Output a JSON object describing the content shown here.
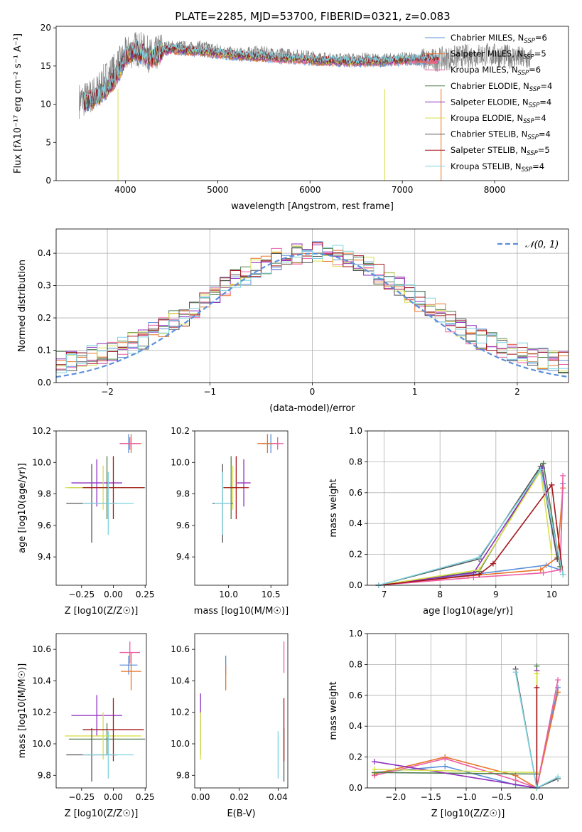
{
  "title": "PLATE=2285, MJD=53700, FIBERID=0321, z=0.083",
  "colors": {
    "Chabrier MILES": "#5b8fd9",
    "Salpeter MILES": "#e87528",
    "Kroupa MILES": "#ec5fa6",
    "Chabrier ELODIE": "#4f7d4f",
    "Salpeter ELODIE": "#8e2dbd",
    "Kroupa ELODIE": "#d8e04a",
    "Chabrier STELIB": "#555555",
    "Salpeter STELIB": "#a3151b",
    "Kroupa STELIB": "#7fd3e0",
    "gaussian": "#5b8fd9"
  },
  "chart_data": [
    {
      "id": "spectrum",
      "type": "line",
      "xlabel": "wavelength [Angstrom, rest frame]",
      "ylabel": "Flux [fλ10⁻¹⁷ erg cm⁻² s⁻¹ A⁻¹]",
      "xlim": [
        3250,
        8800
      ],
      "ylim": [
        0,
        20.2
      ],
      "xticks": [
        4000,
        5000,
        6000,
        7000,
        8000
      ],
      "yticks": [
        0,
        5,
        10,
        15,
        20
      ],
      "legend_position": "top-right",
      "legend": [
        {
          "label": "Chabrier MILES, N",
          "sub": "SSP",
          "eq": "=6",
          "color_key": "Chabrier MILES"
        },
        {
          "label": "Salpeter MILES, N",
          "sub": "SSP",
          "eq": "=5",
          "color_key": "Salpeter MILES"
        },
        {
          "label": "Kroupa MILES, N",
          "sub": "SSP",
          "eq": "=6",
          "color_key": "Kroupa MILES"
        },
        {
          "label": "Chabrier ELODIE, N",
          "sub": "SSP",
          "eq": "=4",
          "color_key": "Chabrier ELODIE"
        },
        {
          "label": "Salpeter ELODIE, N",
          "sub": "SSP",
          "eq": "=4",
          "color_key": "Salpeter ELODIE"
        },
        {
          "label": "Kroupa ELODIE, N",
          "sub": "SSP",
          "eq": "=4",
          "color_key": "Kroupa ELODIE"
        },
        {
          "label": "Chabrier STELIB, N",
          "sub": "SSP",
          "eq": "=4",
          "color_key": "Chabrier STELIB"
        },
        {
          "label": "Salpeter STELIB, N",
          "sub": "SSP",
          "eq": "=5",
          "color_key": "Salpeter STELIB"
        },
        {
          "label": "Kroupa STELIB, N",
          "sub": "SSP",
          "eq": "=4",
          "color_key": "Kroupa STELIB"
        }
      ],
      "data_flux": {
        "x": [
          3500,
          3600,
          3700,
          3800,
          3900,
          4000,
          4100,
          4200,
          4300,
          4400,
          4500,
          4600,
          4700,
          4800,
          4900,
          5000,
          5100,
          5200,
          5300,
          5400,
          5500,
          5600,
          5700,
          5800,
          5900,
          6000,
          6100,
          6200,
          6300,
          6400,
          6500,
          6600,
          6700,
          6800,
          6900,
          7000,
          7100,
          7200,
          7300,
          7400,
          7500,
          7600,
          7700,
          7800,
          7900,
          8000,
          8100,
          8200,
          8300,
          8400
        ],
        "y": [
          10.5,
          10.8,
          11.8,
          13.5,
          14.6,
          16.4,
          17.3,
          17.0,
          16.1,
          17.4,
          17.5,
          17.5,
          17.3,
          17.5,
          17.3,
          17.1,
          16.8,
          16.5,
          16.6,
          16.8,
          16.7,
          16.6,
          16.5,
          16.4,
          16.3,
          16.2,
          16.0,
          15.9,
          15.8,
          15.9,
          15.8,
          15.9,
          15.8,
          15.7,
          15.9,
          16.0,
          15.9,
          15.9,
          15.7,
          15.9,
          16.0,
          16.2,
          16.3,
          16.4,
          16.5,
          16.4,
          16.3,
          16.2,
          16.0,
          15.8
        ]
      },
      "model_flux": {
        "x": [
          3550,
          3700,
          3850,
          3950,
          4000,
          4100,
          4200,
          4300,
          4400,
          4500,
          4700,
          4900,
          5100,
          5300,
          5500,
          5700,
          5900,
          6100,
          6300,
          6500,
          6700,
          6900,
          7100,
          7300
        ],
        "y": [
          10.2,
          10.9,
          12.8,
          14.7,
          16.3,
          17.0,
          16.6,
          16.0,
          16.9,
          17.2,
          17.0,
          16.8,
          16.5,
          16.3,
          16.2,
          16.0,
          15.9,
          15.7,
          15.6,
          15.5,
          15.6,
          15.7,
          15.8,
          15.9
        ]
      }
    },
    {
      "id": "residuals",
      "type": "histogram",
      "xlabel": "(data-model)/error",
      "ylabel": "Normed distribution",
      "xlim": [
        -2.5,
        2.5
      ],
      "ylim": [
        0,
        0.475
      ],
      "xticks": [
        -2,
        -1,
        0,
        1,
        2
      ],
      "yticks": [
        0.0,
        0.1,
        0.2,
        0.3,
        0.4
      ],
      "grid": true,
      "legend_position": "top-right",
      "gaussian_label": "𝒩(0, 1)",
      "bin_edges_start": -2.5,
      "bin_width": 0.1
    },
    {
      "id": "age_vs_Z",
      "type": "scatter",
      "xlabel": "Z [log10(Z/Z☉)]",
      "ylabel": "age  [log10(age/yr)]",
      "xlim": [
        -0.45,
        0.26
      ],
      "ylim": [
        9.22,
        10.2
      ],
      "xticks": [
        -0.25,
        0.0,
        0.25
      ],
      "yticks": [
        9.4,
        9.6,
        9.8,
        10.0,
        10.2
      ],
      "points": [
        {
          "key": "Chabrier MILES",
          "x": 0.12,
          "xerr": 0.07,
          "y": 10.12,
          "yerr": 0.06
        },
        {
          "key": "Salpeter MILES",
          "x": 0.14,
          "xerr": 0.08,
          "y": 10.12,
          "yerr": 0.06
        },
        {
          "key": "Kroupa MILES",
          "x": 0.13,
          "xerr": 0.08,
          "y": 10.12,
          "yerr": 0.04
        },
        {
          "key": "Chabrier ELODIE",
          "x": -0.05,
          "xerr": 0.3,
          "y": 9.84,
          "yerr": 0.2
        },
        {
          "key": "Salpeter ELODIE",
          "x": -0.13,
          "xerr": 0.2,
          "y": 9.87,
          "yerr": 0.15
        },
        {
          "key": "Kroupa ELODIE",
          "x": -0.08,
          "xerr": 0.3,
          "y": 9.84,
          "yerr": 0.14
        },
        {
          "key": "Chabrier STELIB",
          "x": -0.17,
          "xerr": 0.2,
          "y": 9.74,
          "yerr": 0.25
        },
        {
          "key": "Salpeter STELIB",
          "x": 0.0,
          "xerr": 0.24,
          "y": 9.84,
          "yerr": 0.2
        },
        {
          "key": "Kroupa STELIB",
          "x": -0.04,
          "xerr": 0.2,
          "y": 9.74,
          "yerr": 0.2
        }
      ]
    },
    {
      "id": "age_vs_mass",
      "type": "scatter",
      "xlabel": "mass [log10(M/M☉)]",
      "ylabel": "",
      "xlim": [
        9.6,
        10.7
      ],
      "ylim": [
        9.22,
        10.2
      ],
      "xticks": [
        10.0,
        10.5
      ],
      "yticks": [
        9.4,
        9.6,
        9.8,
        10.0,
        10.2
      ],
      "points": [
        {
          "key": "Chabrier MILES",
          "x": 10.5,
          "xerr": 0.1,
          "y": 10.12,
          "yerr": 0.06
        },
        {
          "key": "Salpeter MILES",
          "x": 10.46,
          "xerr": 0.12,
          "y": 10.12,
          "yerr": 0.06
        },
        {
          "key": "Kroupa MILES",
          "x": 10.58,
          "xerr": 0.07,
          "y": 10.12,
          "yerr": 0.04
        },
        {
          "key": "Chabrier ELODIE",
          "x": 10.03,
          "xerr": 0.1,
          "y": 9.84,
          "yerr": 0.2
        },
        {
          "key": "Salpeter ELODIE",
          "x": 10.18,
          "xerr": 0.08,
          "y": 9.87,
          "yerr": 0.15
        },
        {
          "key": "Kroupa ELODIE",
          "x": 10.05,
          "xerr": 0.12,
          "y": 9.84,
          "yerr": 0.14
        },
        {
          "key": "Chabrier STELIB",
          "x": 9.93,
          "xerr": 0.12,
          "y": 9.74,
          "yerr": 0.25
        },
        {
          "key": "Salpeter STELIB",
          "x": 10.09,
          "xerr": 0.15,
          "y": 9.84,
          "yerr": 0.2
        },
        {
          "key": "Kroupa STELIB",
          "x": 9.93,
          "xerr": 0.1,
          "y": 9.74,
          "yerr": 0.2
        }
      ]
    },
    {
      "id": "massweight_vs_age",
      "type": "line",
      "xlabel": "age  [log10(age/yr)]",
      "ylabel": "mass weight",
      "xlim": [
        6.7,
        10.3
      ],
      "ylim": [
        0,
        1.0
      ],
      "xticks": [
        7,
        8,
        9,
        10
      ],
      "yticks": [
        0.0,
        0.2,
        0.4,
        0.6,
        0.8,
        1.0
      ],
      "grid": true,
      "series": [
        {
          "key": "Chabrier MILES",
          "x": [
            6.9,
            8.6,
            9.9,
            10.15,
            10.2
          ],
          "y": [
            0.0,
            0.07,
            0.13,
            0.1,
            0.66
          ]
        },
        {
          "key": "Salpeter MILES",
          "x": [
            6.9,
            8.5,
            9.8,
            10.1,
            10.2
          ],
          "y": [
            0.0,
            0.06,
            0.1,
            0.18,
            0.63
          ]
        },
        {
          "key": "Kroupa MILES",
          "x": [
            6.9,
            8.6,
            9.85,
            10.15,
            10.2
          ],
          "y": [
            0.0,
            0.05,
            0.08,
            0.1,
            0.71
          ]
        },
        {
          "key": "Chabrier ELODIE",
          "x": [
            6.9,
            8.7,
            9.85,
            10.15
          ],
          "y": [
            0.0,
            0.09,
            0.79,
            0.12
          ]
        },
        {
          "key": "Salpeter ELODIE",
          "x": [
            6.9,
            8.6,
            9.83,
            10.1
          ],
          "y": [
            0.0,
            0.08,
            0.76,
            0.17
          ]
        },
        {
          "key": "Kroupa ELODIE",
          "x": [
            6.9,
            8.7,
            9.8,
            10.0
          ],
          "y": [
            0.0,
            0.1,
            0.74,
            0.2
          ]
        },
        {
          "key": "Chabrier STELIB",
          "x": [
            6.9,
            8.7,
            9.8,
            10.1
          ],
          "y": [
            0.0,
            0.17,
            0.77,
            0.17
          ]
        },
        {
          "key": "Salpeter STELIB",
          "x": [
            6.9,
            8.7,
            8.95,
            10.0,
            10.2
          ],
          "y": [
            0.0,
            0.07,
            0.14,
            0.65,
            0.07
          ]
        },
        {
          "key": "Kroupa STELIB",
          "x": [
            6.9,
            8.7,
            9.8,
            10.2
          ],
          "y": [
            0.0,
            0.18,
            0.75,
            0.07
          ]
        }
      ]
    },
    {
      "id": "mass_vs_Z",
      "type": "scatter",
      "xlabel": "Z [log10(Z/Z☉)]",
      "ylabel": "mass [log10(M/M☉)]",
      "xlim": [
        -0.45,
        0.26
      ],
      "ylim": [
        9.72,
        10.7
      ],
      "xticks": [
        -0.25,
        0.0,
        0.25
      ],
      "yticks": [
        9.8,
        10.0,
        10.2,
        10.4,
        10.6
      ],
      "points": [
        {
          "key": "Chabrier MILES",
          "x": 0.12,
          "xerr": 0.07,
          "y": 10.5,
          "yerr": 0.06
        },
        {
          "key": "Salpeter MILES",
          "x": 0.14,
          "xerr": 0.08,
          "y": 10.46,
          "yerr": 0.12
        },
        {
          "key": "Kroupa MILES",
          "x": 0.13,
          "xerr": 0.08,
          "y": 10.58,
          "yerr": 0.07
        },
        {
          "key": "Chabrier ELODIE",
          "x": -0.05,
          "xerr": 0.3,
          "y": 10.03,
          "yerr": 0.1
        },
        {
          "key": "Salpeter ELODIE",
          "x": -0.13,
          "xerr": 0.2,
          "y": 10.18,
          "yerr": 0.13
        },
        {
          "key": "Kroupa ELODIE",
          "x": -0.08,
          "xerr": 0.3,
          "y": 10.05,
          "yerr": 0.15
        },
        {
          "key": "Chabrier STELIB",
          "x": -0.17,
          "xerr": 0.2,
          "y": 9.93,
          "yerr": 0.17
        },
        {
          "key": "Salpeter STELIB",
          "x": 0.0,
          "xerr": 0.24,
          "y": 10.09,
          "yerr": 0.2
        },
        {
          "key": "Kroupa STELIB",
          "x": -0.04,
          "xerr": 0.2,
          "y": 9.93,
          "yerr": 0.15
        }
      ]
    },
    {
      "id": "mass_vs_EBV",
      "type": "scatter",
      "xlabel": "E(B-V)",
      "ylabel": "",
      "xlim": [
        -0.003,
        0.045
      ],
      "ylim": [
        9.72,
        10.7
      ],
      "xticks": [
        0.0,
        0.02,
        0.04
      ],
      "yticks": [
        9.8,
        10.0,
        10.2,
        10.4,
        10.6
      ],
      "points": [
        {
          "key": "Chabrier MILES",
          "x": 0.013,
          "xerr": 0,
          "y": 10.5,
          "yerr": 0.06
        },
        {
          "key": "Salpeter MILES",
          "x": 0.013,
          "xerr": 0,
          "y": 10.42,
          "yerr": 0.08
        },
        {
          "key": "Kroupa MILES",
          "x": 0.043,
          "xerr": 0,
          "y": 10.55,
          "yerr": 0.1
        },
        {
          "key": "Chabrier ELODIE",
          "x": 0.0,
          "xerr": 0,
          "y": 10.03,
          "yerr": 0.1
        },
        {
          "key": "Salpeter ELODIE",
          "x": 0.0,
          "xerr": 0,
          "y": 10.22,
          "yerr": 0.1
        },
        {
          "key": "Kroupa ELODIE",
          "x": 0.0,
          "xerr": 0,
          "y": 10.05,
          "yerr": 0.15
        },
        {
          "key": "Chabrier STELIB",
          "x": 0.043,
          "xerr": 0,
          "y": 9.93,
          "yerr": 0.17
        },
        {
          "key": "Salpeter STELIB",
          "x": 0.043,
          "xerr": 0,
          "y": 10.09,
          "yerr": 0.2
        },
        {
          "key": "Kroupa STELIB",
          "x": 0.04,
          "xerr": 0,
          "y": 9.93,
          "yerr": 0.15
        }
      ]
    },
    {
      "id": "massweight_vs_Z",
      "type": "line",
      "xlabel": "Z [log10(Z/Z☉)]",
      "ylabel": "mass weight",
      "xlim": [
        -2.4,
        0.45
      ],
      "ylim": [
        0,
        1.0
      ],
      "xticks": [
        -2.0,
        -1.5,
        -1.0,
        -0.5,
        0.0
      ],
      "yticks": [
        0.0,
        0.2,
        0.4,
        0.6,
        0.8,
        1.0
      ],
      "grid": true,
      "series": [
        {
          "key": "Chabrier MILES",
          "x": [
            -2.3,
            -1.3,
            -0.3,
            0.0,
            0.3
          ],
          "y": [
            0.1,
            0.14,
            0.02,
            0.0,
            0.65
          ]
        },
        {
          "key": "Salpeter MILES",
          "x": [
            -2.3,
            -1.3,
            -0.3,
            0.0,
            0.3
          ],
          "y": [
            0.09,
            0.2,
            0.08,
            0.0,
            0.62
          ]
        },
        {
          "key": "Kroupa MILES",
          "x": [
            -2.3,
            -1.3,
            -0.3,
            0.0,
            0.3
          ],
          "y": [
            0.08,
            0.19,
            0.05,
            0.0,
            0.7
          ]
        },
        {
          "key": "Chabrier ELODIE",
          "x": [
            -2.3,
            0.0,
            0.0
          ],
          "y": [
            0.1,
            0.09,
            0.79
          ]
        },
        {
          "key": "Salpeter ELODIE",
          "x": [
            -2.3,
            0.0,
            0.0
          ],
          "y": [
            0.17,
            0.0,
            0.76
          ]
        },
        {
          "key": "Kroupa ELODIE",
          "x": [
            -2.3,
            0.0,
            0.0
          ],
          "y": [
            0.12,
            0.1,
            0.74
          ]
        },
        {
          "key": "Chabrier STELIB",
          "x": [
            -0.3,
            0.0,
            0.3
          ],
          "y": [
            0.77,
            0.0,
            0.06
          ]
        },
        {
          "key": "Salpeter STELIB",
          "x": [
            0.0,
            0.0
          ],
          "y": [
            0.0,
            0.65
          ]
        },
        {
          "key": "Kroupa STELIB",
          "x": [
            -0.3,
            0.0,
            0.3
          ],
          "y": [
            0.75,
            0.0,
            0.07
          ]
        }
      ]
    }
  ]
}
